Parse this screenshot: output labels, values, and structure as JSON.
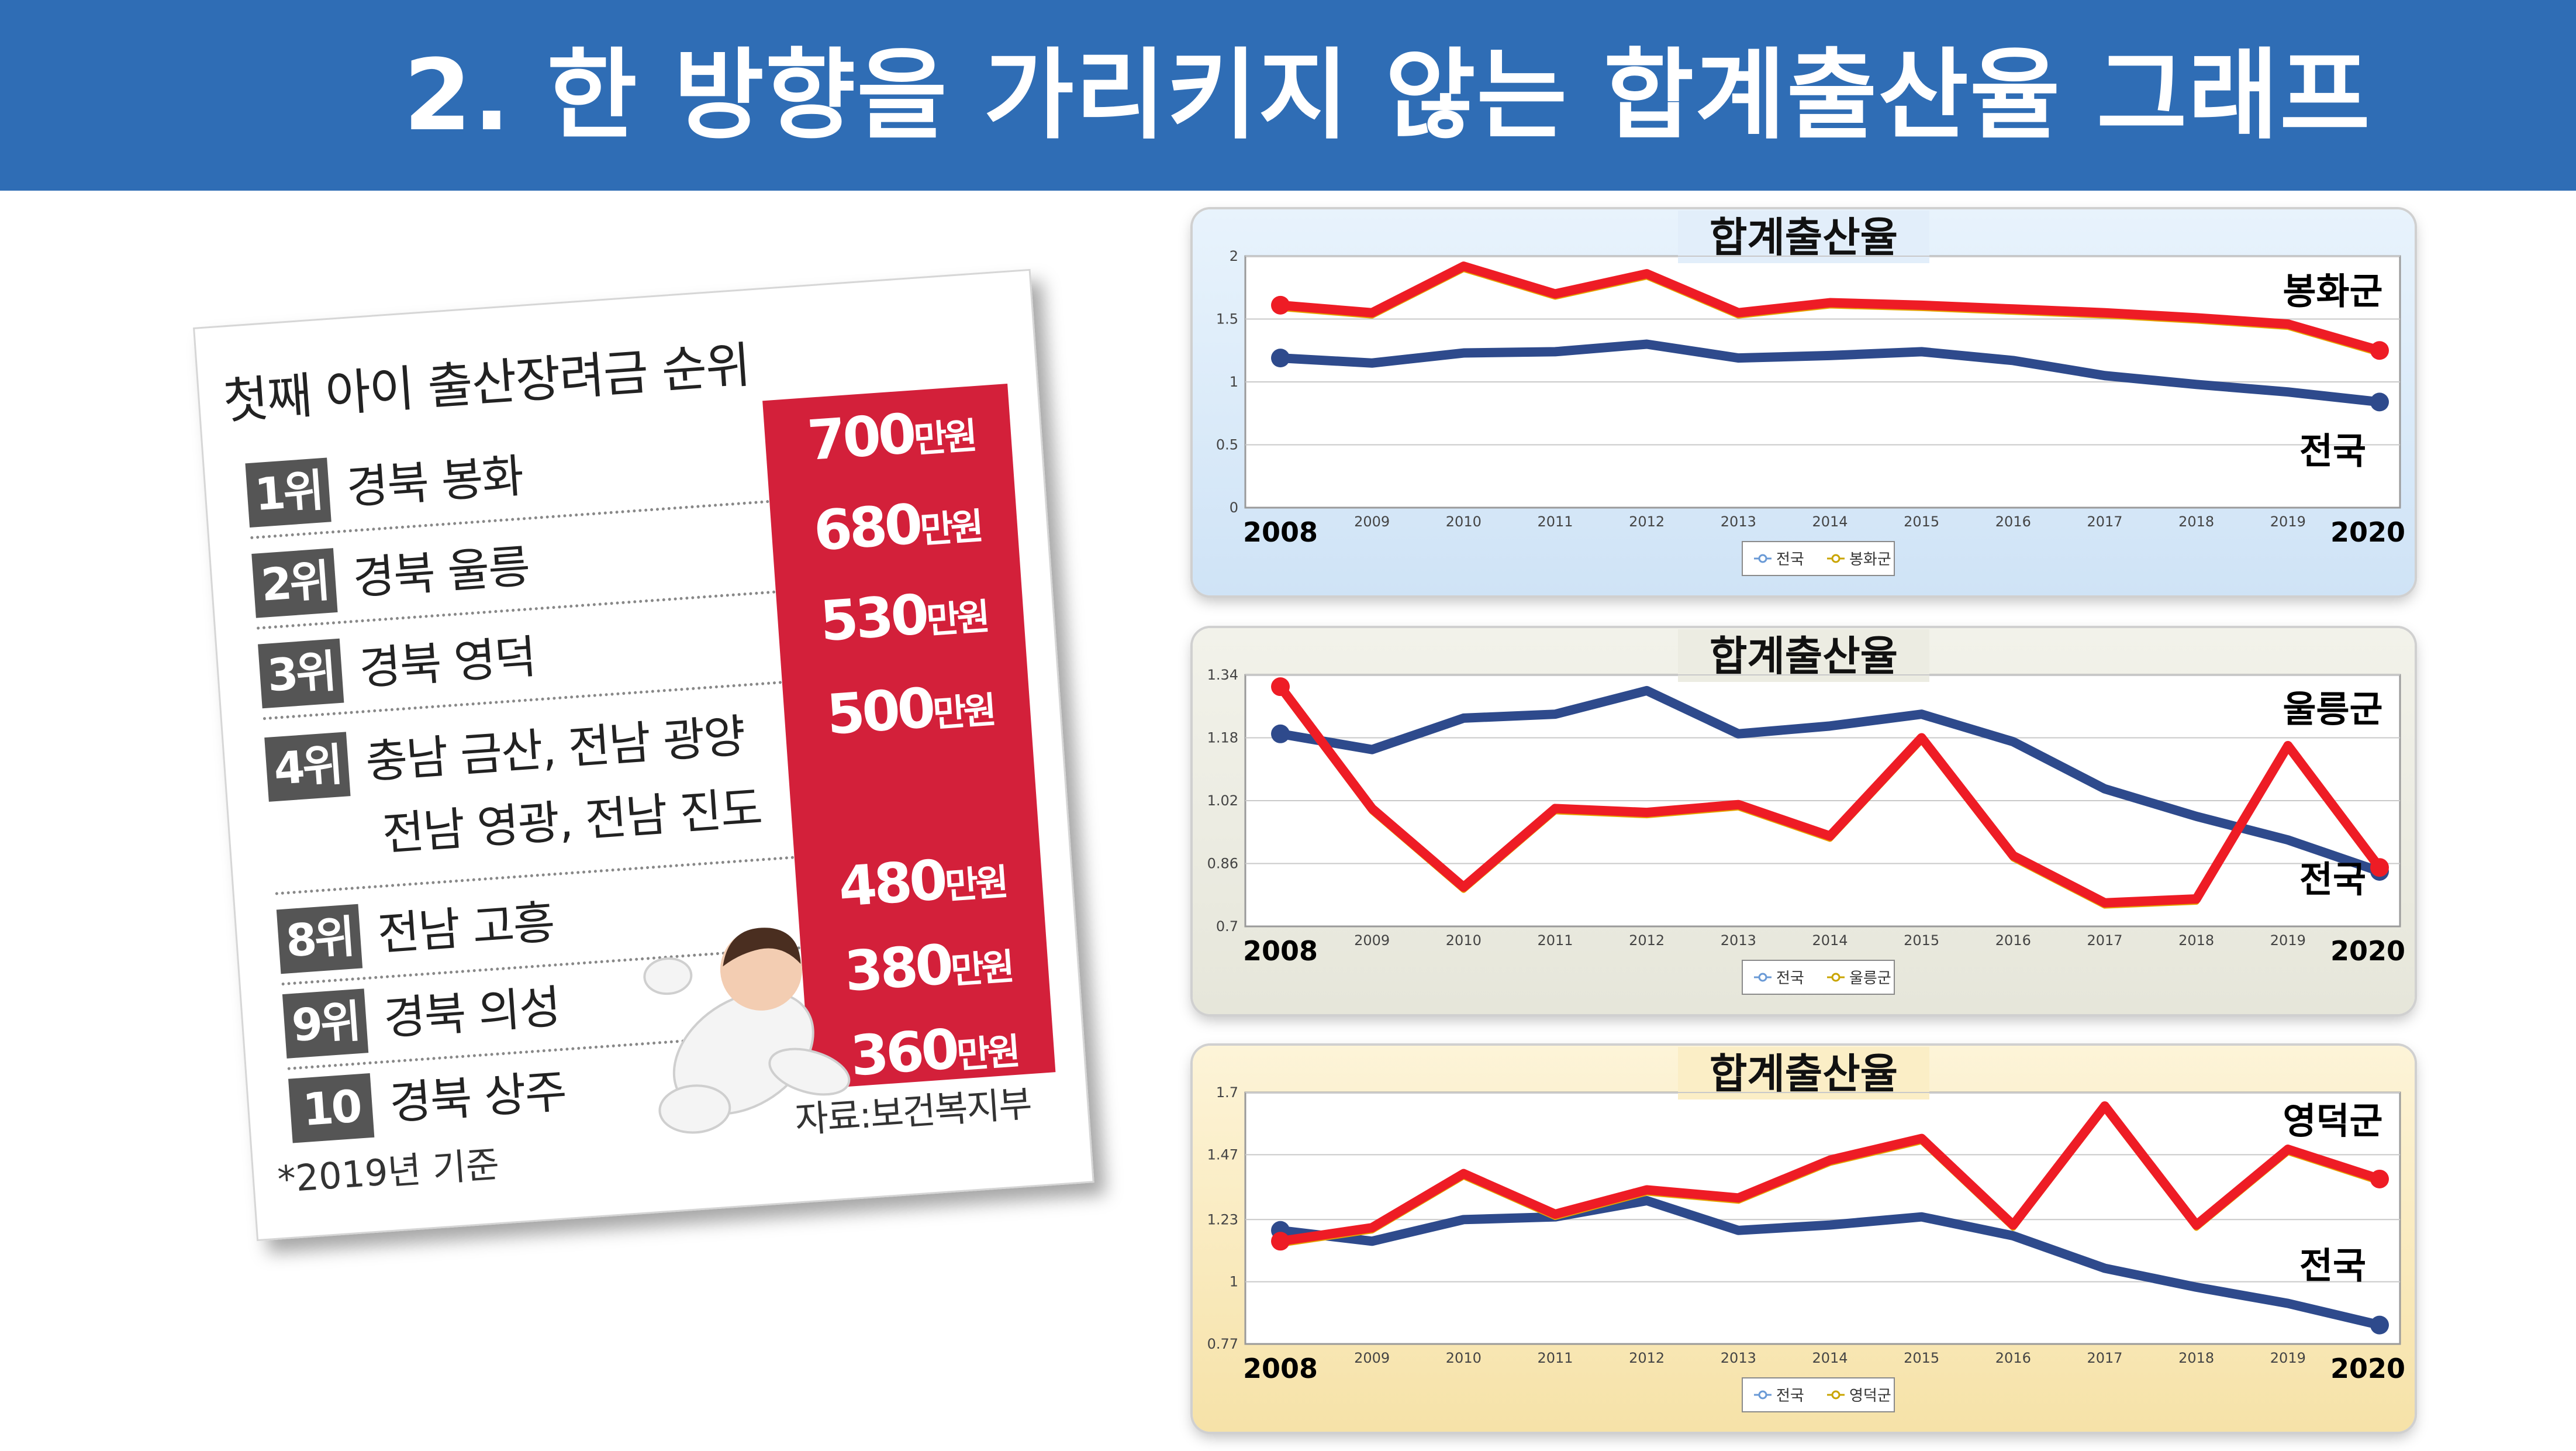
{
  "header": {
    "title": "2. 한 방향을 가리키지 않는 합계출산율 그래프"
  },
  "ranking": {
    "title": "첫째 아이 출산장려금 순위",
    "rows": [
      {
        "rank": "1위",
        "regions": [
          "경북 봉화"
        ],
        "amount": "700",
        "unit": "만원"
      },
      {
        "rank": "2위",
        "regions": [
          "경북 울릉"
        ],
        "amount": "680",
        "unit": "만원"
      },
      {
        "rank": "3위",
        "regions": [
          "경북 영덕"
        ],
        "amount": "530",
        "unit": "만원"
      },
      {
        "rank": "4위",
        "regions": [
          "충남 금산, 전남 광양",
          "전남 영광, 전남 진도"
        ],
        "amount": "500",
        "unit": "만원"
      },
      {
        "rank": "8위",
        "regions": [
          "전남 고흥"
        ],
        "amount": "480",
        "unit": "만원"
      },
      {
        "rank": "9위",
        "regions": [
          "경북 의성"
        ],
        "amount": "380",
        "unit": "만원"
      },
      {
        "rank": "10위",
        "regions": [
          "경북 상주"
        ],
        "amount": "360",
        "unit": "만원"
      }
    ],
    "note": "*2019년 기준",
    "source": "자료:보건복지부"
  },
  "colors": {
    "banner": "#2f6db5",
    "national_line": "#2e4a8c",
    "region_line": "#ee1c25",
    "red_column": "#d3203a",
    "panel1_bg": "#dcebf9",
    "panel2_bg": "#ececE0",
    "panel3_bg": "#f9ebc0"
  },
  "chart_data": [
    {
      "type": "line",
      "title": "합계출산율",
      "x": [
        "2008",
        "2009",
        "2010",
        "2011",
        "2012",
        "2013",
        "2014",
        "2015",
        "2016",
        "2017",
        "2018",
        "2019",
        "2020"
      ],
      "x_labels_emphasized": [
        "2008",
        "2020"
      ],
      "y_ticks": [
        "0",
        "0.5",
        "1",
        "1.5",
        "2"
      ],
      "ylim": [
        0,
        2
      ],
      "series": [
        {
          "name": "전국",
          "label": "전국",
          "color": "#2e4a8c",
          "values": [
            1.19,
            1.15,
            1.23,
            1.24,
            1.3,
            1.19,
            1.21,
            1.24,
            1.17,
            1.05,
            0.98,
            0.92,
            0.84
          ]
        },
        {
          "name": "봉화군",
          "label": "봉화군",
          "color": "#ee1c25",
          "values": [
            1.61,
            1.55,
            1.92,
            1.7,
            1.86,
            1.55,
            1.63,
            1.61,
            1.58,
            1.55,
            1.51,
            1.46,
            1.25
          ]
        }
      ],
      "legend": [
        "전국",
        "봉화군"
      ],
      "legend_position": "bottom",
      "grid": true
    },
    {
      "type": "line",
      "title": "합계출산율",
      "x": [
        "2008",
        "2009",
        "2010",
        "2011",
        "2012",
        "2013",
        "2014",
        "2015",
        "2016",
        "2017",
        "2018",
        "2019",
        "2020"
      ],
      "x_labels_emphasized": [
        "2008",
        "2020"
      ],
      "y_ticks": [
        "0.7",
        "0.86",
        "1.02",
        "1.18",
        "1.34"
      ],
      "ylim": [
        0.7,
        1.34
      ],
      "series": [
        {
          "name": "전국",
          "label": "전국",
          "color": "#2e4a8c",
          "values": [
            1.19,
            1.15,
            1.23,
            1.24,
            1.3,
            1.19,
            1.21,
            1.24,
            1.17,
            1.05,
            0.98,
            0.92,
            0.84
          ]
        },
        {
          "name": "울릉군",
          "label": "울릉군",
          "color": "#ee1c25",
          "values": [
            1.31,
            1.0,
            0.8,
            1.0,
            0.99,
            1.01,
            0.93,
            1.18,
            0.88,
            0.76,
            0.77,
            1.16,
            0.85
          ]
        }
      ],
      "legend": [
        "전국",
        "울릉군"
      ],
      "legend_position": "bottom",
      "grid": true
    },
    {
      "type": "line",
      "title": "합계출산율",
      "x": [
        "2008",
        "2009",
        "2010",
        "2011",
        "2012",
        "2013",
        "2014",
        "2015",
        "2016",
        "2017",
        "2018",
        "2019",
        "2020"
      ],
      "x_labels_emphasized": [
        "2008",
        "2020"
      ],
      "y_ticks": [
        "0.77",
        "1",
        "1.23",
        "1.47",
        "1.7"
      ],
      "ylim": [
        0.77,
        1.7
      ],
      "series": [
        {
          "name": "전국",
          "label": "전국",
          "color": "#2e4a8c",
          "values": [
            1.19,
            1.15,
            1.23,
            1.24,
            1.3,
            1.19,
            1.21,
            1.24,
            1.17,
            1.05,
            0.98,
            0.92,
            0.84
          ]
        },
        {
          "name": "영덕군",
          "label": "영덕군",
          "color": "#ee1c25",
          "values": [
            1.15,
            1.2,
            1.4,
            1.25,
            1.34,
            1.31,
            1.45,
            1.53,
            1.21,
            1.65,
            1.21,
            1.49,
            1.38
          ]
        }
      ],
      "legend": [
        "전국",
        "영덕군"
      ],
      "legend_position": "bottom",
      "grid": true
    }
  ]
}
